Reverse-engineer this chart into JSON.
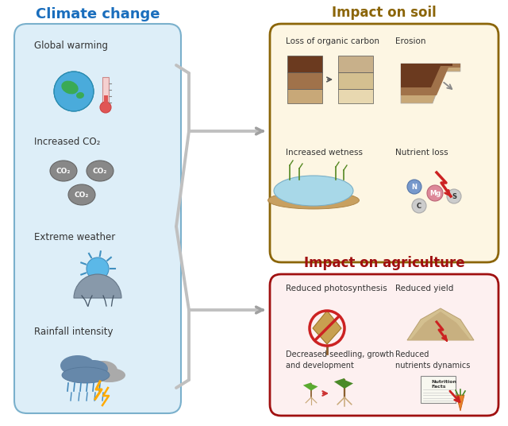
{
  "bg_color": "#ffffff",
  "title_climate": "Climate change",
  "title_soil": "Impact on soil",
  "title_agri": "Impact on agriculture",
  "climate_color": "#1a6ebd",
  "soil_title_color": "#8B6508",
  "agri_title_color": "#a01010",
  "climate_box_fill": "#ddeef8",
  "climate_box_edge": "#7ab0cc",
  "soil_box_fill": "#fdf6e3",
  "soil_box_edge": "#8B6508",
  "agri_box_fill": "#fdf0f0",
  "agri_box_edge": "#a01010",
  "climate_items": [
    "Global warming",
    "Increased CO₂",
    "Extreme weather",
    "Rainfall intensity"
  ],
  "soil_items": [
    "Loss of organic carbon",
    "Erosion",
    "Increased wetness",
    "Nutrient loss"
  ],
  "agri_items": [
    "Reduced photosynthesis",
    "Reduced yield",
    "Decreased seedling, growth\nand development",
    "Reduced\nnutrients dynamics"
  ],
  "arrow_color": "#c0c0c0",
  "arrow_dark": "#a0a0a0"
}
